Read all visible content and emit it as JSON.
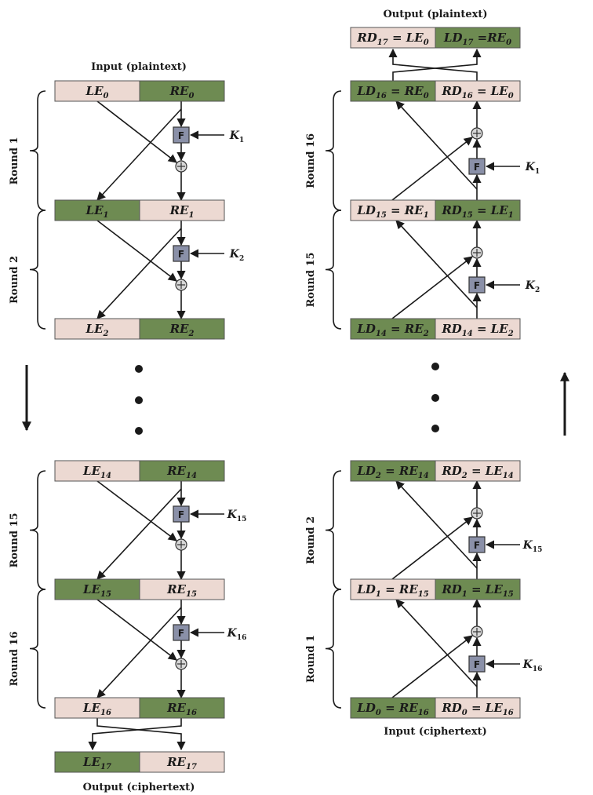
{
  "colors": {
    "green": "#6e8b52",
    "pink": "#ecd9d2",
    "f_box": "#8a90a8",
    "line": "#1a1a1a"
  },
  "encryption": {
    "input_caption": "Input (plaintext)",
    "output_caption": "Output (ciphertext)",
    "rows": [
      {
        "left": {
          "base": "LE",
          "sub": "0"
        },
        "right": {
          "base": "RE",
          "sub": "0"
        }
      },
      {
        "left": {
          "base": "LE",
          "sub": "1"
        },
        "right": {
          "base": "RE",
          "sub": "1"
        }
      },
      {
        "left": {
          "base": "LE",
          "sub": "2"
        },
        "right": {
          "base": "RE",
          "sub": "2"
        }
      },
      {
        "left": {
          "base": "LE",
          "sub": "14"
        },
        "right": {
          "base": "RE",
          "sub": "14"
        }
      },
      {
        "left": {
          "base": "LE",
          "sub": "15"
        },
        "right": {
          "base": "RE",
          "sub": "15"
        }
      },
      {
        "left": {
          "base": "LE",
          "sub": "16"
        },
        "right": {
          "base": "RE",
          "sub": "16"
        }
      },
      {
        "left": {
          "base": "LE",
          "sub": "17"
        },
        "right": {
          "base": "RE",
          "sub": "17"
        }
      }
    ],
    "rounds": [
      {
        "label": "Round 1",
        "key": {
          "base": "K",
          "sub": "1"
        }
      },
      {
        "label": "Round 2",
        "key": {
          "base": "K",
          "sub": "2"
        }
      },
      {
        "label": "Round 15",
        "key": {
          "base": "K",
          "sub": "15"
        }
      },
      {
        "label": "Round 16",
        "key": {
          "base": "K",
          "sub": "16"
        }
      }
    ]
  },
  "decryption": {
    "input_caption": "Input (ciphertext)",
    "output_caption": "Output (plaintext)",
    "rows": [
      {
        "left": [
          {
            "base": "RD",
            "sub": "17"
          },
          {
            "base": " = LE",
            "sub": "0"
          }
        ],
        "right": [
          {
            "base": "LD",
            "sub": "17"
          },
          {
            "base": " =RE",
            "sub": "0"
          }
        ]
      },
      {
        "left": [
          {
            "base": "LD",
            "sub": "16"
          },
          {
            "base": " = RE",
            "sub": "0"
          }
        ],
        "right": [
          {
            "base": "RD",
            "sub": "16"
          },
          {
            "base": " = LE",
            "sub": "0"
          }
        ]
      },
      {
        "left": [
          {
            "base": "LD",
            "sub": "15"
          },
          {
            "base": " = RE",
            "sub": "1"
          }
        ],
        "right": [
          {
            "base": "RD",
            "sub": "15"
          },
          {
            "base": " = LE",
            "sub": "1"
          }
        ]
      },
      {
        "left": [
          {
            "base": "LD",
            "sub": "14"
          },
          {
            "base": " = RE",
            "sub": "2"
          }
        ],
        "right": [
          {
            "base": "RD",
            "sub": "14"
          },
          {
            "base": " = LE",
            "sub": "2"
          }
        ]
      },
      {
        "left": [
          {
            "base": "LD",
            "sub": "2"
          },
          {
            "base": " = RE",
            "sub": "14"
          }
        ],
        "right": [
          {
            "base": "RD",
            "sub": "2"
          },
          {
            "base": " = LE",
            "sub": "14"
          }
        ]
      },
      {
        "left": [
          {
            "base": "LD",
            "sub": "1"
          },
          {
            "base": " = RE",
            "sub": "15"
          }
        ],
        "right": [
          {
            "base": "RD",
            "sub": "1"
          },
          {
            "base": " = LE",
            "sub": "15"
          }
        ]
      },
      {
        "left": [
          {
            "base": "LD",
            "sub": "0"
          },
          {
            "base": " = RE",
            "sub": "16"
          }
        ],
        "right": [
          {
            "base": "RD",
            "sub": "0"
          },
          {
            "base": " = LE",
            "sub": "16"
          }
        ]
      }
    ],
    "rounds": [
      {
        "label": "Round 16",
        "key": {
          "base": "K",
          "sub": "1"
        }
      },
      {
        "label": "Round 15",
        "key": {
          "base": "K",
          "sub": "2"
        }
      },
      {
        "label": "Round 2",
        "key": {
          "base": "K",
          "sub": "15"
        }
      },
      {
        "label": "Round 1",
        "key": {
          "base": "K",
          "sub": "16"
        }
      }
    ]
  },
  "f_label": "F"
}
